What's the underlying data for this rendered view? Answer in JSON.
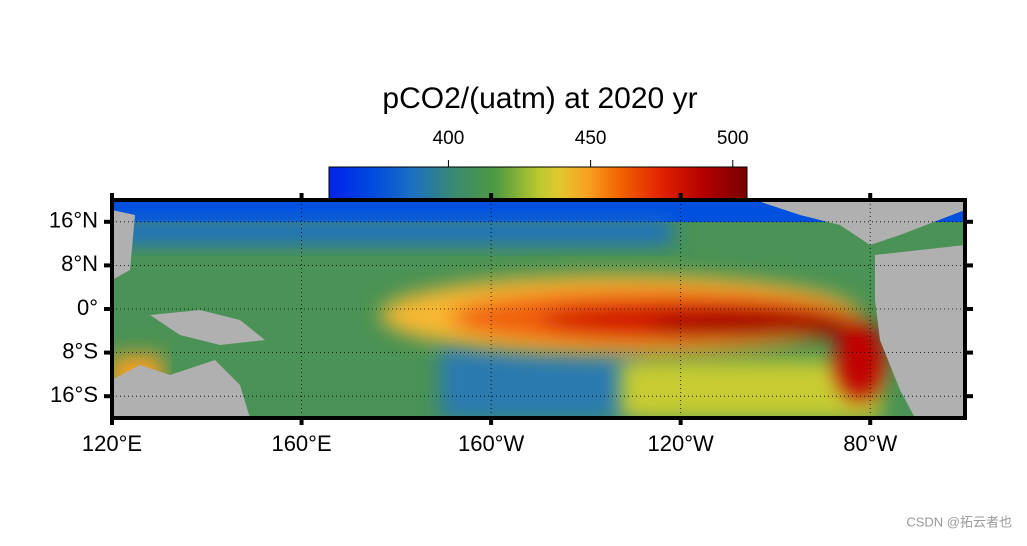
{
  "map": {
    "title": "pCO2/(uatm) at 2020 yr",
    "colorbar": {
      "lim": [
        358,
        505
      ],
      "ticks": [
        400,
        450,
        500
      ]
    },
    "lonlim": [
      120,
      300
    ],
    "latlim": [
      -20,
      20
    ],
    "lon_ticks": [
      {
        "value": 120,
        "label": "120°E"
      },
      {
        "value": 160,
        "label": "160°E"
      },
      {
        "value": 200,
        "label": "160°W"
      },
      {
        "value": 240,
        "label": "120°W"
      },
      {
        "value": 280,
        "label": "80°W"
      }
    ],
    "lat_ticks": [
      {
        "value": 16,
        "label": "16°N"
      },
      {
        "value": 8,
        "label": "8°N"
      },
      {
        "value": 0,
        "label": "0°"
      },
      {
        "value": -8,
        "label": "8°S"
      },
      {
        "value": -16,
        "label": "16°S"
      }
    ],
    "watermark": "CSDN @拓云者也"
  }
}
